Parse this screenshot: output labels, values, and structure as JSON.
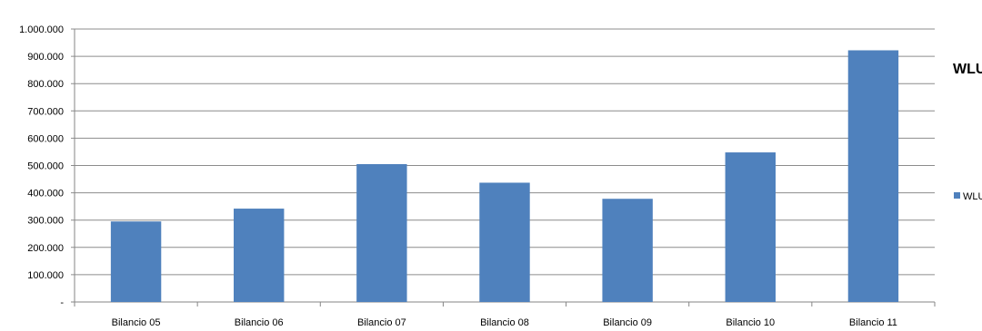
{
  "chart_data": {
    "type": "bar",
    "title": "WLU",
    "categories": [
      "Bilancio 05",
      "Bilancio 06",
      "Bilancio 07",
      "Bilancio 08",
      "Bilancio 09",
      "Bilancio 10",
      "Bilancio 11"
    ],
    "series": [
      {
        "name": "WLU",
        "values": [
          295000,
          342000,
          505000,
          437000,
          378000,
          548000,
          922000
        ],
        "color": "#4f81bd"
      }
    ],
    "yticks": [
      "-",
      "100.000",
      "200.000",
      "300.000",
      "400.000",
      "500.000",
      "600.000",
      "700.000",
      "800.000",
      "900.000",
      "1.000.000"
    ],
    "ylim": [
      0,
      1000000
    ],
    "grid": true,
    "legend_position": "right"
  }
}
